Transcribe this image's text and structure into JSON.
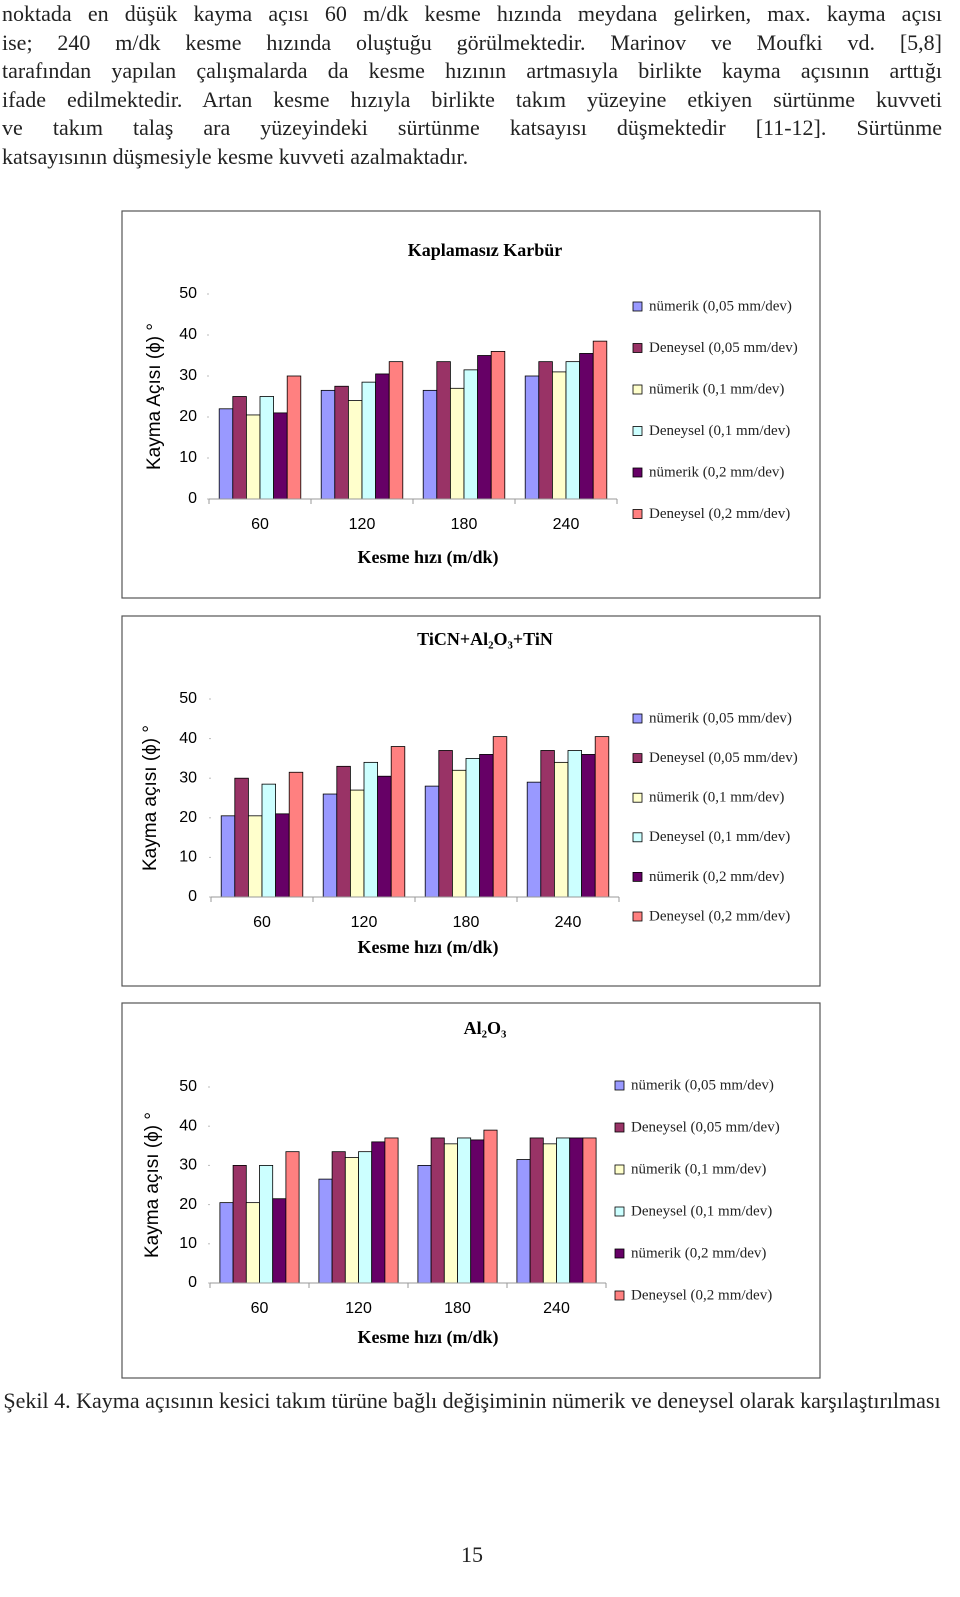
{
  "paragraph": [
    "noktada en düşük kayma açısı 60 m/dk kesme hızında meydana gelirken, max. kayma açısı",
    "ise; 240 m/dk kesme hızında oluştuğu görülmektedir. Marinov ve Moufki vd. [5,8]",
    "tarafından yapılan çalışmalarda da kesme hızının artmasıyla birlikte kayma açısının arttığı",
    "ifade edilmektedir. Artan kesme hızıyla birlikte takım yüzeyine etkiyen sürtünme kuvveti",
    "ve takım talaş ara yüzeyindeki sürtünme katsayısı düşmektedir [11-12]. Sürtünme",
    "katsayısının düşmesiyle kesme kuvveti azalmaktadır."
  ],
  "chart_data": [
    {
      "type": "bar",
      "title": "Kaplamasız Karbür",
      "x_label": "Kesme hızı (m/dk)",
      "y_label": "Kayma Açısı (ϕ) °",
      "categories": [
        "60",
        "120",
        "180",
        "240"
      ],
      "ylim": [
        0,
        50
      ],
      "yticks": [
        0,
        10,
        20,
        30,
        40,
        50
      ],
      "legend": "right",
      "series": [
        {
          "name": "nümerik (0,05 mm/dev)",
          "color": "#9999ff",
          "values": [
            22,
            26.5,
            26.5,
            30
          ]
        },
        {
          "name": "Deneysel (0,05 mm/dev)",
          "color": "#993366",
          "values": [
            25,
            27.5,
            33.5,
            33.5
          ]
        },
        {
          "name": "nümerik (0,1 mm/dev)",
          "color": "#ffffcc",
          "values": [
            20.5,
            24,
            27,
            31
          ]
        },
        {
          "name": "Deneysel (0,1 mm/dev)",
          "color": "#ccffff",
          "values": [
            25,
            28.5,
            31.5,
            33.5
          ]
        },
        {
          "name": "nümerik (0,2 mm/dev)",
          "color": "#660066",
          "values": [
            21,
            30.5,
            35,
            35.5
          ]
        },
        {
          "name": "Deneysel (0,2 mm/dev)",
          "color": "#ff8080",
          "values": [
            30,
            33.5,
            36,
            38.5
          ]
        }
      ]
    },
    {
      "type": "bar",
      "title": "TiCN+Al₂O₃+TiN",
      "x_label": "Kesme hızı (m/dk)",
      "y_label": "Kayma açısı (ϕ) °",
      "categories": [
        "60",
        "120",
        "180",
        "240"
      ],
      "ylim": [
        0,
        50
      ],
      "yticks": [
        0,
        10,
        20,
        30,
        40,
        50
      ],
      "legend": "right",
      "series": [
        {
          "name": "nümerik (0,05 mm/dev)",
          "color": "#9999ff",
          "values": [
            20.5,
            26,
            28,
            29
          ]
        },
        {
          "name": "Deneysel (0,05 mm/dev)",
          "color": "#993366",
          "values": [
            30,
            33,
            37,
            37
          ]
        },
        {
          "name": "nümerik (0,1 mm/dev)",
          "color": "#ffffcc",
          "values": [
            20.5,
            27,
            32,
            34
          ]
        },
        {
          "name": "Deneysel (0,1 mm/dev)",
          "color": "#ccffff",
          "values": [
            28.5,
            34,
            35,
            37
          ]
        },
        {
          "name": "nümerik (0,2 mm/dev)",
          "color": "#660066",
          "values": [
            21,
            30.5,
            36,
            36
          ]
        },
        {
          "name": "Deneysel (0,2 mm/dev)",
          "color": "#ff8080",
          "values": [
            31.5,
            38,
            40.5,
            40.5
          ]
        }
      ]
    },
    {
      "type": "bar",
      "title": "Al₂O₃",
      "x_label": "Kesme hızı (m/dk)",
      "y_label": "Kayma açısı (ϕ) °",
      "categories": [
        "60",
        "120",
        "180",
        "240"
      ],
      "ylim": [
        0,
        50
      ],
      "yticks": [
        0,
        10,
        20,
        30,
        40,
        50
      ],
      "legend": "right",
      "series": [
        {
          "name": "nümerik (0,05 mm/dev)",
          "color": "#9999ff",
          "values": [
            20.5,
            26.5,
            30,
            31.5
          ]
        },
        {
          "name": "Deneysel (0,05 mm/dev)",
          "color": "#993366",
          "values": [
            30,
            33.5,
            37,
            37
          ]
        },
        {
          "name": "nümerik (0,1 mm/dev)",
          "color": "#ffffcc",
          "values": [
            20.5,
            32,
            35.5,
            35.5
          ]
        },
        {
          "name": "Deneysel (0,1 mm/dev)",
          "color": "#ccffff",
          "values": [
            30,
            33.5,
            37,
            37
          ]
        },
        {
          "name": "nümerik (0,2 mm/dev)",
          "color": "#660066",
          "values": [
            21.5,
            36,
            36.5,
            37
          ]
        },
        {
          "name": "Deneysel (0,2 mm/dev)",
          "color": "#ff8080",
          "values": [
            33.5,
            37,
            39,
            37
          ]
        }
      ]
    }
  ],
  "caption": "Şekil 4. Kayma açısının kesici takım türüne bağlı değişiminin nümerik ve deneysel olarak karşılaştırılması",
  "page_number": "15"
}
